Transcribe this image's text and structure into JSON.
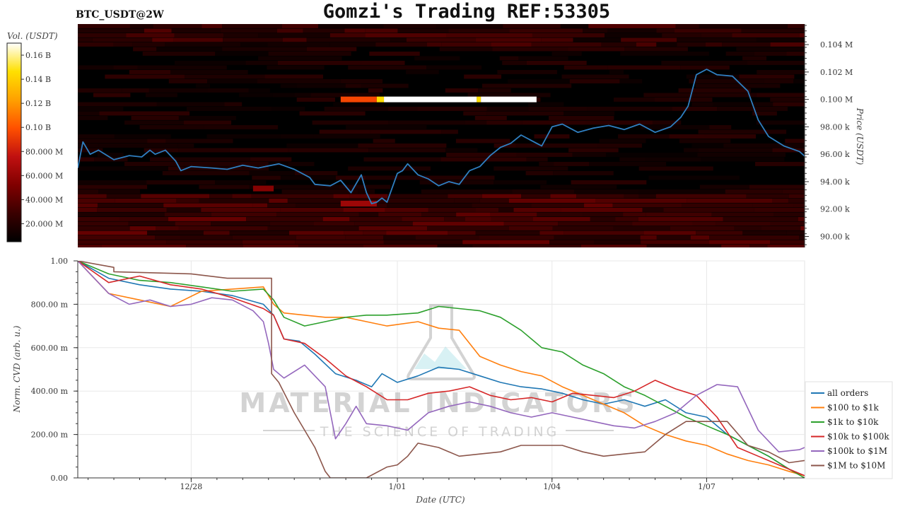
{
  "header": {
    "symbol": "BTC_USDT@2W",
    "title": "Gomzi's Trading REF:53305"
  },
  "watermark": {
    "line1": "MATERIAL INDICATORS",
    "line2": "THE SCIENCE OF TRADING"
  },
  "chart_data": [
    {
      "type": "heatmap",
      "colorbar_label": "Vol. (USDT)",
      "colorbar_ticks": [
        "20.000 M",
        "40.000 M",
        "60.000 M",
        "80.000 M",
        "0.10 B",
        "0.12 B",
        "0.14 B",
        "0.16 B"
      ],
      "colorbar_values": [
        20000000,
        40000000,
        60000000,
        80000000,
        100000000,
        120000000,
        140000000,
        160000000
      ],
      "colorbar_range": [
        5000000,
        170000000
      ],
      "colors": [
        "#000000",
        "#3a0000",
        "#800000",
        "#c01010",
        "#ff5000",
        "#ffa000",
        "#ffe000",
        "#ffffff"
      ],
      "y_label": "Price (USDT)",
      "y_ticks": [
        "90.00 k",
        "92.00 k",
        "94.00 k",
        "96.00 k",
        "98.00 k",
        "0.100 M",
        "0.102 M",
        "0.104 M"
      ],
      "y_tick_values": [
        90000,
        92000,
        94000,
        96000,
        98000,
        100000,
        102000,
        104000
      ],
      "ylim": [
        89200,
        105500
      ],
      "bands": [
        {
          "price": 100000,
          "x_start": 12.55,
          "x_end": 12.9,
          "level": 0.55
        },
        {
          "price": 100000,
          "x_start": 12.9,
          "x_end": 12.97,
          "level": 0.85
        },
        {
          "price": 100000,
          "x_start": 12.97,
          "x_end": 13.87,
          "level": 1.0
        },
        {
          "price": 100000,
          "x_start": 13.87,
          "x_end": 13.91,
          "level": 0.85
        },
        {
          "price": 100000,
          "x_start": 13.91,
          "x_end": 14.45,
          "level": 1.0
        },
        {
          "price": 92400,
          "x_start": 12.55,
          "x_end": 12.9,
          "level": 0.35
        },
        {
          "price": 93500,
          "x_start": 11.7,
          "x_end": 11.9,
          "level": 0.3
        }
      ],
      "price_line": {
        "name": "Price",
        "color": "#2f7fc1",
        "x": [
          10.0,
          10.05,
          10.12,
          10.2,
          10.35,
          10.5,
          10.62,
          10.7,
          10.75,
          10.85,
          10.95,
          11.0,
          11.1,
          11.3,
          11.45,
          11.6,
          11.75,
          11.95,
          12.1,
          12.25,
          12.3,
          12.45,
          12.55,
          12.65,
          12.75,
          12.8,
          12.85,
          12.9,
          12.95,
          13.0,
          13.1,
          13.15,
          13.2,
          13.3,
          13.4,
          13.5,
          13.6,
          13.7,
          13.8,
          13.9,
          14.0,
          14.1,
          14.2,
          14.3,
          14.4,
          14.5,
          14.6,
          14.7,
          14.85,
          15.0,
          15.15,
          15.3,
          15.45,
          15.6,
          15.75,
          15.85,
          15.92,
          16.0,
          16.1,
          16.2,
          16.35,
          16.5,
          16.6,
          16.7,
          16.85,
          17.0,
          17.15,
          17.3,
          17.5,
          17.6,
          17.75,
          17.8,
          17.9,
          18.0,
          18.1,
          18.25,
          18.4,
          18.55,
          18.7
        ],
        "y": [
          95000,
          96900,
          96000,
          96300,
          95600,
          95900,
          95800,
          96300,
          96000,
          96300,
          95500,
          94800,
          95100,
          95000,
          94900,
          95200,
          95000,
          95300,
          94900,
          94300,
          93800,
          93700,
          94100,
          93200,
          94500,
          93200,
          92400,
          92500,
          92800,
          92500,
          94600,
          94800,
          95300,
          94500,
          94200,
          93700,
          94000,
          93800,
          94800,
          95100,
          95900,
          96500,
          96800,
          97400,
          97000,
          96600,
          98000,
          98200,
          97600,
          97900,
          98100,
          97800,
          98200,
          97600,
          98000,
          98700,
          99500,
          101800,
          102200,
          101800,
          101700,
          100600,
          98500,
          97300,
          96600,
          96200,
          95200,
          94400,
          95400,
          94200,
          93900,
          94700,
          95000,
          94800,
          94900,
          95000,
          94900,
          95000,
          95000
        ]
      }
    },
    {
      "type": "line",
      "x_label": "Date (UTC)",
      "y_label": "Norm. CVD (arb. u.)",
      "x_ticks": [
        "12/28",
        "1/01",
        "1/04",
        "1/07"
      ],
      "x_tick_values": [
        11.1,
        13.1,
        14.6,
        16.1
      ],
      "xlim": [
        10.0,
        17.05
      ],
      "y_ticks": [
        "0.00",
        "200.00 m",
        "400.00 m",
        "600.00 m",
        "800.00 m",
        "1.00"
      ],
      "y_tick_values": [
        0,
        0.2,
        0.4,
        0.6,
        0.8,
        1.0
      ],
      "ylim": [
        0,
        1.0
      ],
      "grid": true,
      "legend_position": "right",
      "series": [
        {
          "name": "all orders",
          "color": "#1f77b4",
          "x": [
            10.0,
            10.3,
            10.6,
            10.9,
            11.2,
            11.5,
            11.8,
            11.9,
            12.0,
            12.15,
            12.3,
            12.5,
            12.7,
            12.85,
            12.95,
            13.1,
            13.3,
            13.5,
            13.7,
            13.9,
            14.1,
            14.3,
            14.5,
            14.7,
            14.9,
            15.1,
            15.3,
            15.5,
            15.7,
            15.9,
            16.1,
            16.3,
            16.5,
            16.7,
            16.9,
            17.05
          ],
          "y": [
            1.0,
            0.92,
            0.89,
            0.87,
            0.86,
            0.84,
            0.8,
            0.75,
            0.64,
            0.63,
            0.57,
            0.48,
            0.45,
            0.42,
            0.48,
            0.44,
            0.47,
            0.51,
            0.5,
            0.47,
            0.44,
            0.42,
            0.41,
            0.39,
            0.36,
            0.34,
            0.36,
            0.33,
            0.36,
            0.3,
            0.28,
            0.2,
            0.15,
            0.1,
            0.04,
            0.01
          ]
        },
        {
          "name": "$100 to $1k",
          "color": "#ff7f0e",
          "x": [
            10.0,
            10.3,
            10.6,
            10.9,
            11.2,
            11.5,
            11.8,
            11.9,
            12.0,
            12.2,
            12.4,
            12.6,
            12.8,
            13.0,
            13.3,
            13.5,
            13.7,
            13.9,
            14.1,
            14.3,
            14.5,
            14.7,
            14.9,
            15.1,
            15.3,
            15.5,
            15.7,
            15.9,
            16.1,
            16.3,
            16.5,
            16.7,
            16.9,
            17.05
          ],
          "y": [
            1.0,
            0.85,
            0.82,
            0.79,
            0.86,
            0.87,
            0.88,
            0.8,
            0.76,
            0.75,
            0.74,
            0.74,
            0.72,
            0.7,
            0.72,
            0.69,
            0.68,
            0.56,
            0.52,
            0.49,
            0.47,
            0.42,
            0.38,
            0.34,
            0.3,
            0.24,
            0.2,
            0.17,
            0.15,
            0.11,
            0.08,
            0.06,
            0.03,
            0.01
          ]
        },
        {
          "name": "$1k to $10k",
          "color": "#2ca02c",
          "x": [
            10.0,
            10.3,
            10.6,
            10.9,
            11.2,
            11.5,
            11.8,
            11.9,
            12.0,
            12.2,
            12.4,
            12.6,
            12.8,
            13.0,
            13.3,
            13.5,
            13.7,
            13.9,
            14.1,
            14.3,
            14.5,
            14.7,
            14.9,
            15.1,
            15.3,
            15.5,
            15.7,
            15.9,
            16.1,
            16.3,
            16.5,
            16.7,
            16.9,
            17.05
          ],
          "y": [
            1.0,
            0.94,
            0.91,
            0.9,
            0.88,
            0.86,
            0.87,
            0.82,
            0.74,
            0.7,
            0.72,
            0.74,
            0.75,
            0.75,
            0.76,
            0.79,
            0.78,
            0.77,
            0.74,
            0.68,
            0.6,
            0.58,
            0.52,
            0.48,
            0.42,
            0.38,
            0.33,
            0.28,
            0.24,
            0.2,
            0.15,
            0.1,
            0.04,
            0.0
          ]
        },
        {
          "name": "$10k to $100k",
          "color": "#d62728",
          "x": [
            10.0,
            10.3,
            10.6,
            10.9,
            11.2,
            11.5,
            11.8,
            11.9,
            12.0,
            12.2,
            12.4,
            12.6,
            12.8,
            13.0,
            13.2,
            13.4,
            13.6,
            13.8,
            14.0,
            14.2,
            14.4,
            14.6,
            14.8,
            15.0,
            15.2,
            15.4,
            15.6,
            15.8,
            16.0,
            16.2,
            16.4,
            16.6,
            16.8,
            17.05
          ],
          "y": [
            1.0,
            0.9,
            0.93,
            0.89,
            0.87,
            0.83,
            0.78,
            0.75,
            0.64,
            0.62,
            0.55,
            0.47,
            0.42,
            0.36,
            0.36,
            0.39,
            0.4,
            0.42,
            0.38,
            0.36,
            0.37,
            0.35,
            0.39,
            0.38,
            0.37,
            0.4,
            0.45,
            0.41,
            0.38,
            0.28,
            0.14,
            0.1,
            0.06,
            0.01
          ]
        },
        {
          "name": "$100k to $1M",
          "color": "#9467bd",
          "x": [
            10.0,
            10.1,
            10.3,
            10.5,
            10.7,
            10.9,
            11.1,
            11.3,
            11.5,
            11.7,
            11.8,
            11.85,
            11.9,
            12.0,
            12.2,
            12.4,
            12.5,
            12.6,
            12.7,
            12.8,
            13.0,
            13.2,
            13.4,
            13.6,
            13.8,
            14.0,
            14.2,
            14.4,
            14.6,
            14.8,
            15.0,
            15.2,
            15.4,
            15.6,
            15.8,
            16.0,
            16.2,
            16.4,
            16.6,
            16.8,
            17.0,
            17.05
          ],
          "y": [
            1.0,
            0.95,
            0.85,
            0.8,
            0.82,
            0.79,
            0.8,
            0.83,
            0.82,
            0.77,
            0.72,
            0.62,
            0.5,
            0.46,
            0.52,
            0.42,
            0.18,
            0.25,
            0.33,
            0.25,
            0.24,
            0.22,
            0.3,
            0.33,
            0.35,
            0.33,
            0.3,
            0.28,
            0.3,
            0.28,
            0.26,
            0.24,
            0.23,
            0.26,
            0.3,
            0.38,
            0.43,
            0.42,
            0.22,
            0.12,
            0.13,
            0.14
          ]
        },
        {
          "name": "$1M to $10M",
          "color": "#8c564b",
          "x": [
            10.0,
            10.35,
            10.35,
            11.1,
            11.45,
            11.75,
            11.88,
            11.88,
            11.95,
            12.1,
            12.3,
            12.4,
            12.45,
            12.6,
            12.8,
            13.0,
            13.1,
            13.2,
            13.3,
            13.5,
            13.7,
            13.9,
            14.1,
            14.3,
            14.5,
            14.7,
            14.9,
            15.1,
            15.3,
            15.5,
            15.7,
            15.9,
            16.1,
            16.3,
            16.5,
            16.7,
            16.9,
            17.05
          ],
          "y": [
            1.0,
            0.97,
            0.95,
            0.94,
            0.92,
            0.92,
            0.92,
            0.48,
            0.44,
            0.3,
            0.14,
            0.03,
            0.0,
            0.0,
            0.0,
            0.05,
            0.06,
            0.1,
            0.16,
            0.14,
            0.1,
            0.11,
            0.12,
            0.15,
            0.15,
            0.15,
            0.12,
            0.1,
            0.11,
            0.12,
            0.2,
            0.26,
            0.26,
            0.26,
            0.15,
            0.12,
            0.07,
            0.08
          ]
        }
      ]
    }
  ]
}
